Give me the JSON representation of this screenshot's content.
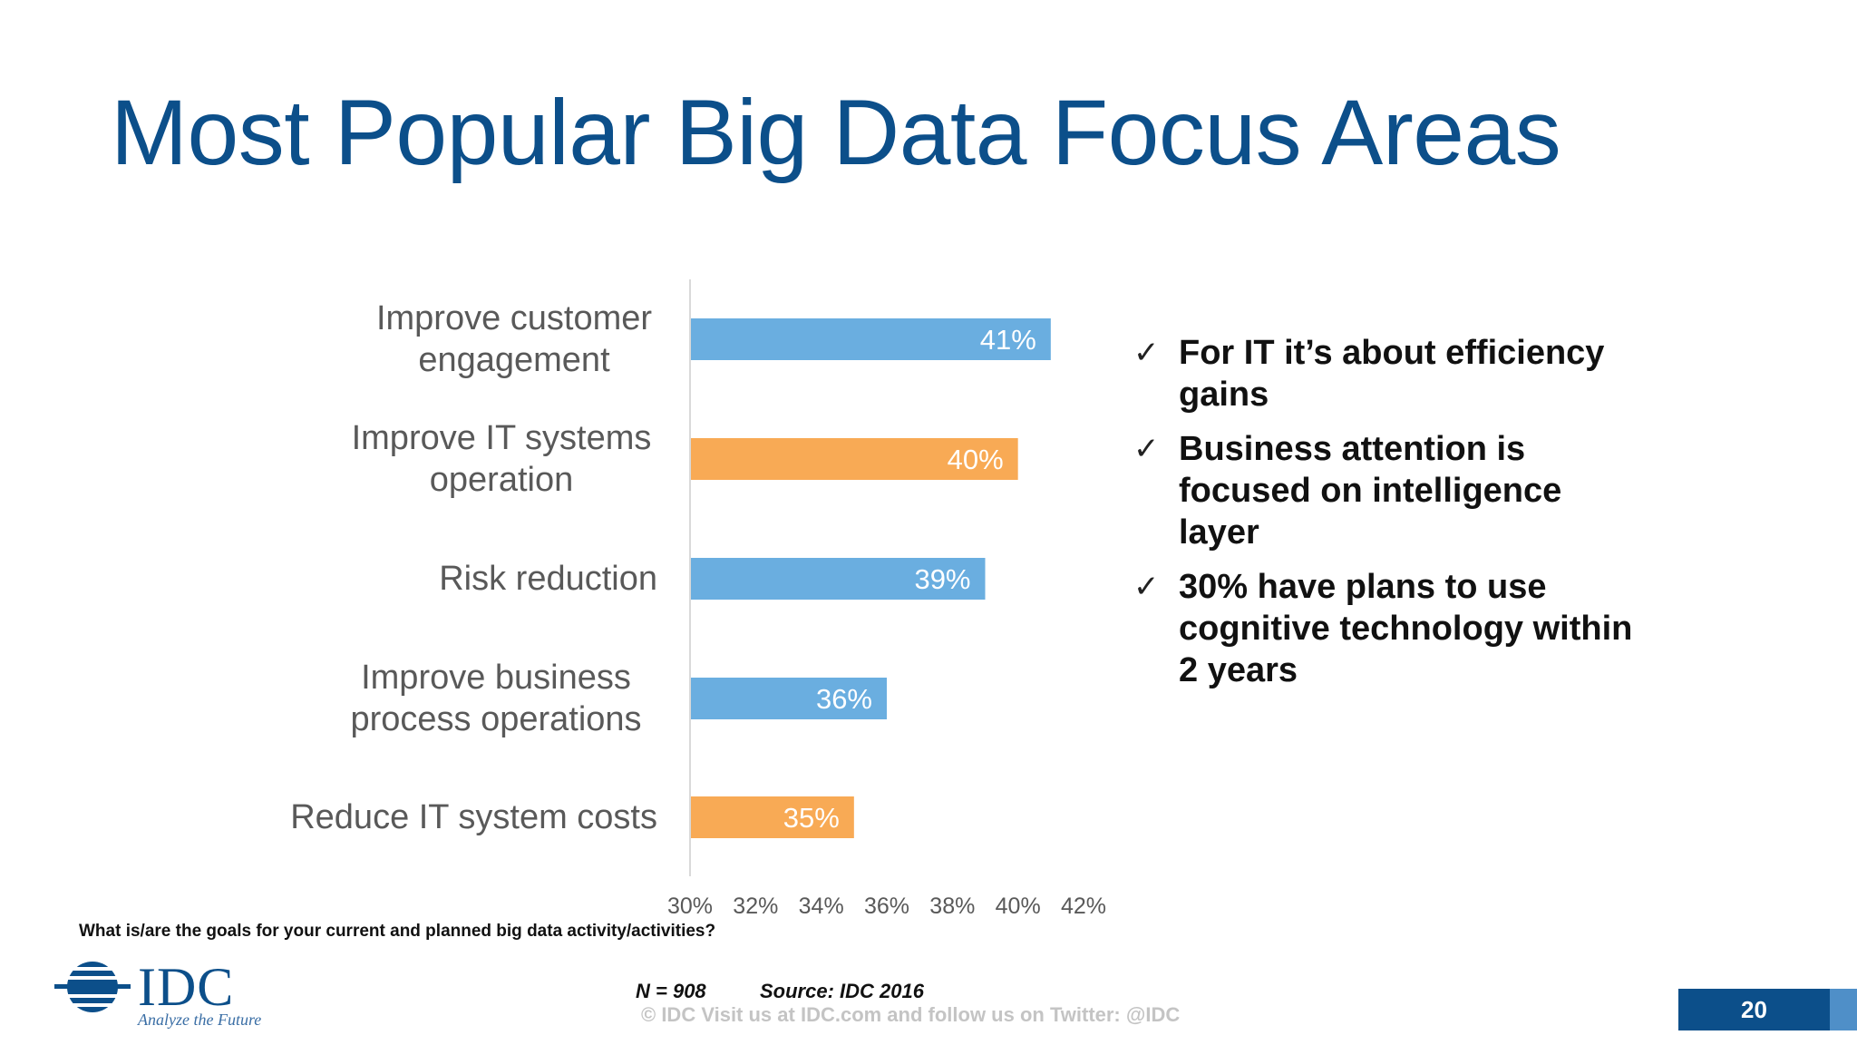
{
  "slide": {
    "title": "Most Popular Big Data Focus Areas",
    "page_number": "20"
  },
  "bullets": [
    "For IT it’s about efficiency gains",
    "Business attention is focused on intelligence layer",
    "30% have plans to use cognitive technology within 2 years"
  ],
  "footer": {
    "question": "What is/are the goals for your current and planned big data activity/activities?",
    "n": "N = 908",
    "source": "Source: IDC 2016",
    "copyright": "© IDC   Visit us at IDC.com and follow us on Twitter: @IDC",
    "logo_text": "IDC",
    "logo_tagline": "Analyze the Future"
  },
  "colors": {
    "blue_bar": "#6aaee0",
    "orange_bar": "#f8aa55",
    "title_blue": "#0c4f8a"
  },
  "chart_data": {
    "type": "bar",
    "orientation": "horizontal",
    "categories": [
      "Improve customer engagement",
      "Improve IT systems operation",
      "Risk reduction",
      "Improve business process operations",
      "Reduce IT system costs"
    ],
    "values": [
      41,
      40,
      39,
      36,
      35
    ],
    "data_labels": [
      "41%",
      "40%",
      "39%",
      "36%",
      "35%"
    ],
    "bar_colors": [
      "#6aaee0",
      "#f8aa55",
      "#6aaee0",
      "#6aaee0",
      "#f8aa55"
    ],
    "xlim": [
      30,
      42
    ],
    "xticks": [
      30,
      32,
      34,
      36,
      38,
      40,
      42
    ],
    "xtick_labels": [
      "30%",
      "32%",
      "34%",
      "36%",
      "38%",
      "40%",
      "42%"
    ],
    "grid": false,
    "title": "",
    "xlabel": "",
    "ylabel": ""
  }
}
